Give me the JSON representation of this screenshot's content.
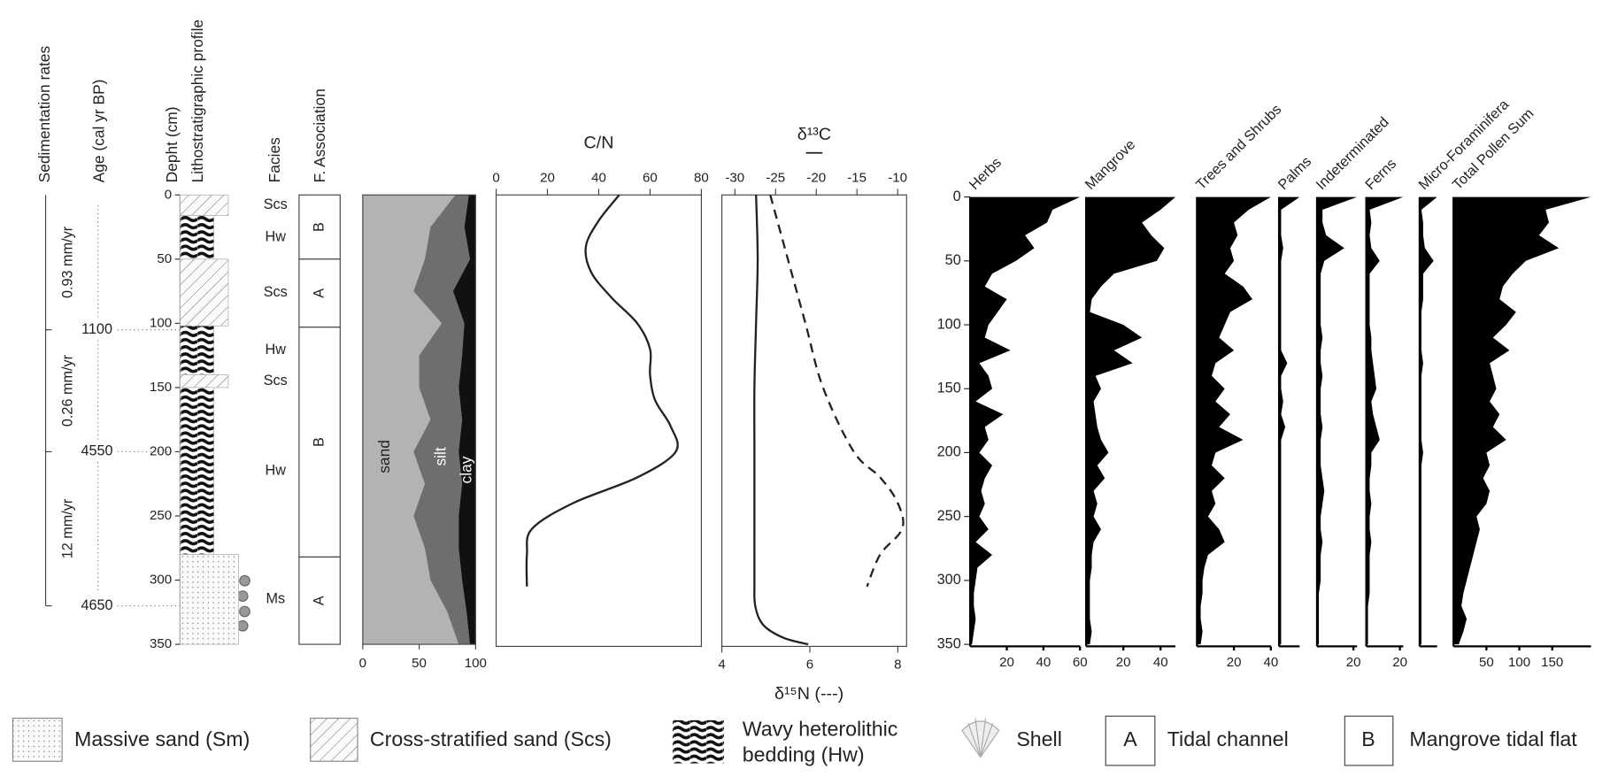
{
  "chart_data": [
    {
      "type": "lithology",
      "labels": [
        "Sedimentation rates",
        "Age (cal yr BP)",
        "Depht (cm)",
        "Lithostratigraphic profile",
        "Facies",
        "F. Association"
      ],
      "ylim": [
        0,
        350
      ],
      "yticks": [
        0,
        50,
        100,
        150,
        200,
        250,
        300,
        350
      ],
      "rates": [
        {
          "label": "0.93 mm/yr",
          "top": 0,
          "bottom": 105
        },
        {
          "label": "0.26 mm/yr",
          "top": 105,
          "bottom": 200
        },
        {
          "label": "12 mm/yr",
          "top": 200,
          "bottom": 320
        }
      ],
      "ages": {
        "depths": [
          105,
          200,
          320
        ],
        "values": [
          1100,
          4550,
          4650
        ]
      },
      "layers": [
        {
          "facies": "Scs",
          "top": 0,
          "bottom": 16
        },
        {
          "facies": "Hw",
          "top": 16,
          "bottom": 50
        },
        {
          "facies": "Scs",
          "top": 50,
          "bottom": 102
        },
        {
          "facies": "Hw",
          "top": 102,
          "bottom": 140
        },
        {
          "facies": "Scs",
          "top": 140,
          "bottom": 150
        },
        {
          "facies": "Hw",
          "top": 150,
          "bottom": 280
        },
        {
          "facies": "Ms",
          "top": 280,
          "bottom": 350
        }
      ],
      "associations": [
        {
          "label": "B",
          "top": 0,
          "bottom": 50
        },
        {
          "label": "A",
          "top": 50,
          "bottom": 103
        },
        {
          "label": "B",
          "top": 103,
          "bottom": 282
        },
        {
          "label": "A",
          "top": 282,
          "bottom": 350
        }
      ]
    },
    {
      "type": "area",
      "stacked": true,
      "ylim": [
        0,
        350
      ],
      "xlim": [
        0,
        100
      ],
      "xticks": [
        0,
        50,
        100
      ],
      "y": [
        0,
        25,
        50,
        75,
        100,
        125,
        150,
        175,
        200,
        225,
        250,
        275,
        300,
        325,
        350
      ],
      "series": [
        {
          "name": "sand",
          "color": "#b3b3b3",
          "values": [
            82,
            60,
            55,
            45,
            70,
            50,
            50,
            60,
            45,
            55,
            45,
            55,
            60,
            75,
            85
          ]
        },
        {
          "name": "silt",
          "color": "#6e6e6e",
          "values": [
            12,
            30,
            40,
            35,
            20,
            38,
            35,
            28,
            40,
            33,
            40,
            30,
            28,
            17,
            10
          ]
        },
        {
          "name": "clay",
          "color": "#111111",
          "values": [
            6,
            10,
            5,
            20,
            10,
            12,
            15,
            12,
            15,
            12,
            15,
            15,
            12,
            8,
            5
          ]
        }
      ]
    },
    {
      "type": "line",
      "title": "C/N",
      "ylim": [
        0,
        350
      ],
      "xlim": [
        0,
        80
      ],
      "xticks": [
        0,
        20,
        40,
        60,
        80
      ],
      "series": [
        {
          "color": "#222222",
          "style": "solid",
          "y": [
            0,
            20,
            40,
            60,
            80,
            100,
            120,
            140,
            160,
            180,
            200,
            220,
            240,
            260,
            280,
            305
          ],
          "values": [
            48,
            40,
            35,
            37,
            45,
            55,
            60,
            60,
            62,
            68,
            70,
            55,
            30,
            14,
            12,
            12
          ]
        }
      ]
    },
    {
      "type": "line",
      "title": "δ¹³C",
      "xlabel": "δ¹⁵N (---)",
      "ylim": [
        0,
        350
      ],
      "xlim": [
        -31.6,
        -8.9
      ],
      "xticks": [
        -30,
        -25,
        -20,
        -15,
        -10
      ],
      "x2lim": [
        4,
        8.2
      ],
      "x2ticks": [
        4,
        6,
        8
      ],
      "series": [
        {
          "color": "#222222",
          "style": "solid",
          "y": [
            0,
            50,
            100,
            150,
            200,
            250,
            300,
            320,
            335,
            345,
            350
          ],
          "values": [
            -27.4,
            -27.2,
            -27.4,
            -27.6,
            -27.6,
            -27.6,
            -27.6,
            -27.5,
            -26.5,
            -24,
            -21
          ]
        },
        {
          "color": "#222222",
          "style": "dashed",
          "axis": "x2",
          "y": [
            0,
            50,
            100,
            150,
            200,
            220,
            240,
            260,
            280,
            305
          ],
          "values": [
            5.1,
            5.5,
            5.9,
            6.3,
            7.0,
            7.6,
            8.0,
            8.1,
            7.6,
            7.3
          ]
        }
      ]
    },
    {
      "type": "silhouette",
      "color": "#000000",
      "ylim": [
        0,
        350
      ],
      "yticks": [
        0,
        50,
        100,
        150,
        200,
        250,
        300,
        350
      ],
      "y": [
        0,
        10,
        20,
        30,
        40,
        50,
        60,
        70,
        80,
        90,
        100,
        110,
        120,
        130,
        140,
        150,
        160,
        170,
        180,
        190,
        200,
        210,
        220,
        230,
        240,
        250,
        260,
        270,
        280,
        290,
        300,
        310,
        320,
        330,
        340,
        350
      ],
      "series": [
        {
          "name": "Herbs",
          "xlim": [
            0,
            60
          ],
          "xticks": [
            20,
            40,
            60
          ],
          "values": [
            60,
            45,
            42,
            30,
            35,
            25,
            12,
            8,
            20,
            15,
            10,
            8,
            22,
            5,
            10,
            12,
            3,
            18,
            8,
            10,
            5,
            12,
            8,
            6,
            8,
            5,
            10,
            3,
            12,
            4,
            3,
            2,
            2,
            3,
            2,
            1
          ]
        },
        {
          "name": "Mangrove",
          "xlim": [
            0,
            48
          ],
          "xticks": [
            20,
            40
          ],
          "values": [
            48,
            40,
            30,
            35,
            42,
            38,
            15,
            8,
            3,
            2,
            20,
            30,
            15,
            25,
            5,
            8,
            4,
            5,
            6,
            8,
            12,
            6,
            10,
            4,
            6,
            4,
            8,
            4,
            3,
            3,
            2,
            2,
            2,
            2,
            3,
            2
          ]
        },
        {
          "name": "Trees and Shrubs",
          "xlim": [
            0,
            40
          ],
          "xticks": [
            20,
            40
          ],
          "values": [
            40,
            28,
            20,
            22,
            18,
            20,
            15,
            25,
            30,
            18,
            15,
            12,
            20,
            10,
            8,
            15,
            10,
            18,
            12,
            25,
            10,
            8,
            15,
            8,
            10,
            6,
            12,
            15,
            6,
            4,
            3,
            3,
            2,
            2,
            3,
            2
          ]
        },
        {
          "name": "Palms",
          "xlim": [
            0,
            10
          ],
          "xticks": [],
          "values": [
            10,
            1,
            1,
            1,
            2,
            1,
            1,
            1,
            1,
            1,
            1,
            1,
            1,
            4,
            1,
            1,
            2,
            1,
            3,
            1,
            1,
            1,
            1,
            1,
            1,
            1,
            1,
            1,
            1,
            1,
            1,
            1,
            1,
            1,
            1,
            1
          ]
        },
        {
          "name": "Indeterminated",
          "xlim": [
            0,
            22
          ],
          "xticks": [
            20
          ],
          "values": [
            22,
            3,
            3,
            5,
            15,
            4,
            2,
            2,
            2,
            2,
            2,
            3,
            2,
            2,
            3,
            2,
            2,
            2,
            3,
            2,
            2,
            2,
            3,
            4,
            3,
            2,
            2,
            3,
            2,
            2,
            2,
            1,
            1,
            1,
            1,
            1
          ]
        },
        {
          "name": "Ferns",
          "xlim": [
            0,
            22
          ],
          "xticks": [
            20
          ],
          "values": [
            22,
            2,
            3,
            2,
            3,
            8,
            2,
            2,
            2,
            2,
            2,
            3,
            3,
            4,
            5,
            6,
            3,
            4,
            6,
            8,
            3,
            3,
            2,
            2,
            3,
            2,
            2,
            3,
            2,
            2,
            2,
            2,
            1,
            1,
            1,
            1
          ]
        },
        {
          "name": "Micro-Foraminifera",
          "xlim": [
            0,
            10
          ],
          "xticks": [],
          "values": [
            10,
            1,
            2,
            2,
            3,
            8,
            2,
            2,
            2,
            1,
            1,
            1,
            1,
            2,
            1,
            1,
            1,
            1,
            1,
            1,
            2,
            1,
            1,
            1,
            1,
            1,
            1,
            1,
            1,
            1,
            1,
            1,
            1,
            1,
            1,
            1
          ]
        },
        {
          "name": "Total Pollen Sum",
          "xlim": [
            0,
            209
          ],
          "xticks": [
            50,
            100,
            150
          ],
          "values": [
            209,
            140,
            145,
            130,
            160,
            110,
            90,
            75,
            70,
            95,
            80,
            60,
            85,
            55,
            60,
            65,
            55,
            70,
            60,
            80,
            50,
            55,
            45,
            55,
            50,
            35,
            40,
            35,
            30,
            25,
            20,
            15,
            12,
            20,
            15,
            8
          ]
        }
      ]
    }
  ],
  "legend": [
    {
      "label": "Massive sand (Sm)"
    },
    {
      "label": "Cross-stratified sand (Scs)"
    },
    {
      "label": [
        "Wavy heterolithic",
        "bedding (Hw)"
      ]
    },
    {
      "label": "Shell"
    },
    {
      "key": "A",
      "label": "Tidal channel"
    },
    {
      "key": "B",
      "label": "Mangrove tidal flat"
    }
  ]
}
